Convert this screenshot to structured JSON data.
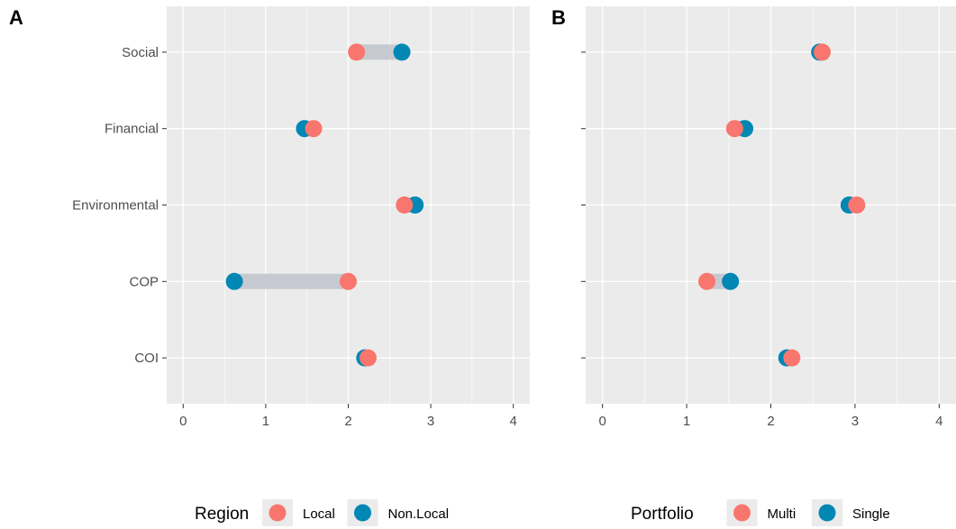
{
  "colors": {
    "panel_bg": "#ebebeb",
    "grid": "#ffffff",
    "segment": "#c6c9d0",
    "point_a": "#f8766d",
    "point_b": "#0087b4",
    "tick": "#333333"
  },
  "chart_data": [
    {
      "type": "dumbbell",
      "panel_label": "A",
      "categories": [
        "Social",
        "Financial",
        "Environmental",
        "COP",
        "COI"
      ],
      "xlim": [
        -0.2,
        4.2
      ],
      "xticks": [
        "0",
        "1",
        "2",
        "3",
        "4"
      ],
      "legend": {
        "title": "Region",
        "position": "bottom"
      },
      "grid": true,
      "series": [
        {
          "name": "Local",
          "values": [
            2.1,
            1.58,
            2.68,
            2.0,
            2.24
          ]
        },
        {
          "name": "Non.Local",
          "values": [
            2.65,
            1.47,
            2.81,
            0.62,
            2.2
          ]
        }
      ]
    },
    {
      "type": "dumbbell",
      "panel_label": "B",
      "categories": [
        "Social",
        "Financial",
        "Environmental",
        "COP",
        "COI"
      ],
      "xlim": [
        -0.2,
        4.2
      ],
      "xticks": [
        "0",
        "1",
        "2",
        "3",
        "4"
      ],
      "legend": {
        "title": "Portfolio",
        "position": "bottom"
      },
      "grid": true,
      "series": [
        {
          "name": "Multi",
          "values": [
            2.61,
            1.57,
            3.02,
            1.24,
            2.25
          ]
        },
        {
          "name": "Single",
          "values": [
            2.58,
            1.69,
            2.93,
            1.52,
            2.19
          ]
        }
      ]
    }
  ]
}
